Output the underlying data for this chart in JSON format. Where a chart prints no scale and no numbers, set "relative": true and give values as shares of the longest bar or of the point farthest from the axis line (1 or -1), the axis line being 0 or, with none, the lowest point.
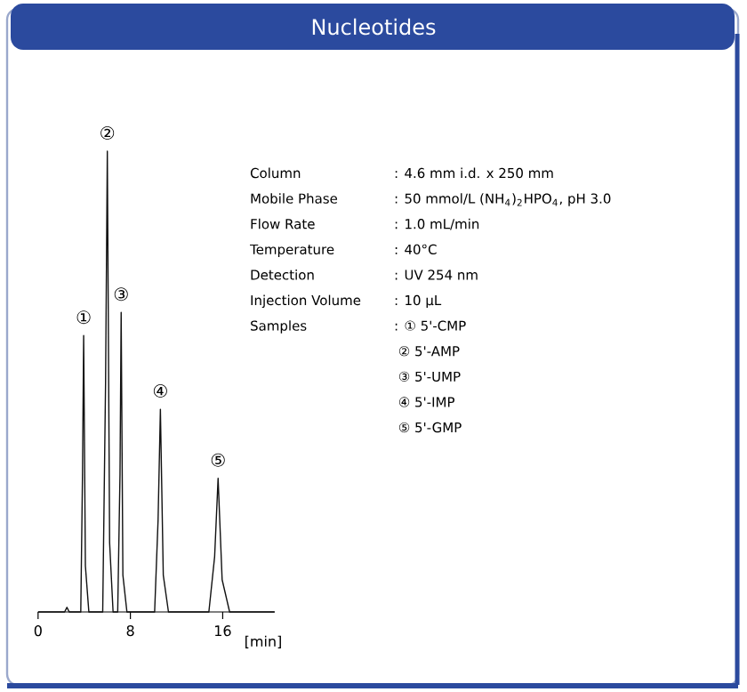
{
  "chart_data": {
    "type": "line",
    "title": "Nucleotides",
    "relative": true,
    "color": "#111111",
    "x": [
      0,
      2.3,
      2.5,
      2.7,
      3.7,
      3.85,
      3.95,
      4.1,
      4.4,
      5.6,
      5.85,
      6.0,
      6.2,
      6.5,
      6.9,
      7.1,
      7.2,
      7.35,
      7.7,
      10.1,
      10.4,
      10.6,
      10.85,
      11.3,
      14.8,
      15.3,
      15.6,
      15.95,
      16.6,
      20.5
    ],
    "values": [
      0,
      0,
      0.01,
      0,
      0,
      0.3,
      0.6,
      0.1,
      0,
      0,
      0.5,
      1,
      0.15,
      0,
      0,
      0.3,
      0.65,
      0.08,
      0,
      0,
      0.2,
      0.44,
      0.08,
      0,
      0,
      0.12,
      0.29,
      0.07,
      0,
      0
    ],
    "xlim": [
      0,
      20.5
    ],
    "xticks": [
      0,
      8,
      16
    ],
    "xlabel": "[min]",
    "tick_labels": "x",
    "grid": false,
    "marker": "none",
    "line_style": "solid",
    "annotations": [
      {
        "text": "①",
        "x": 3.95,
        "y": 0.6
      },
      {
        "text": "②",
        "x": 6.0,
        "y": 1
      },
      {
        "text": "③",
        "x": 7.2,
        "y": 0.65
      },
      {
        "text": "④",
        "x": 10.6,
        "y": 0.44
      },
      {
        "text": "⑤",
        "x": 15.6,
        "y": 0.29
      },
      "Column",
      "Mobile Phase",
      "Flow Rate",
      "Temperature",
      "Detection",
      "Injection Volume",
      "Samples",
      ": 4.6 mm i.d. x 250 mm",
      ": 50 mmol/L (NH$_{4}$)$_{2}$HPO$_{4}$, pH 3.0",
      ": 1.0 mL/min",
      ": 40°C",
      ": UV 254 nm",
      ": 10 µL",
      ": ① 5'-CMP",
      "  ② 5'-AMP",
      "  ③ 5'-UMP",
      "  ④ 5'-IMP",
      "  ⑤ 5'-GMP"
    ]
  }
}
